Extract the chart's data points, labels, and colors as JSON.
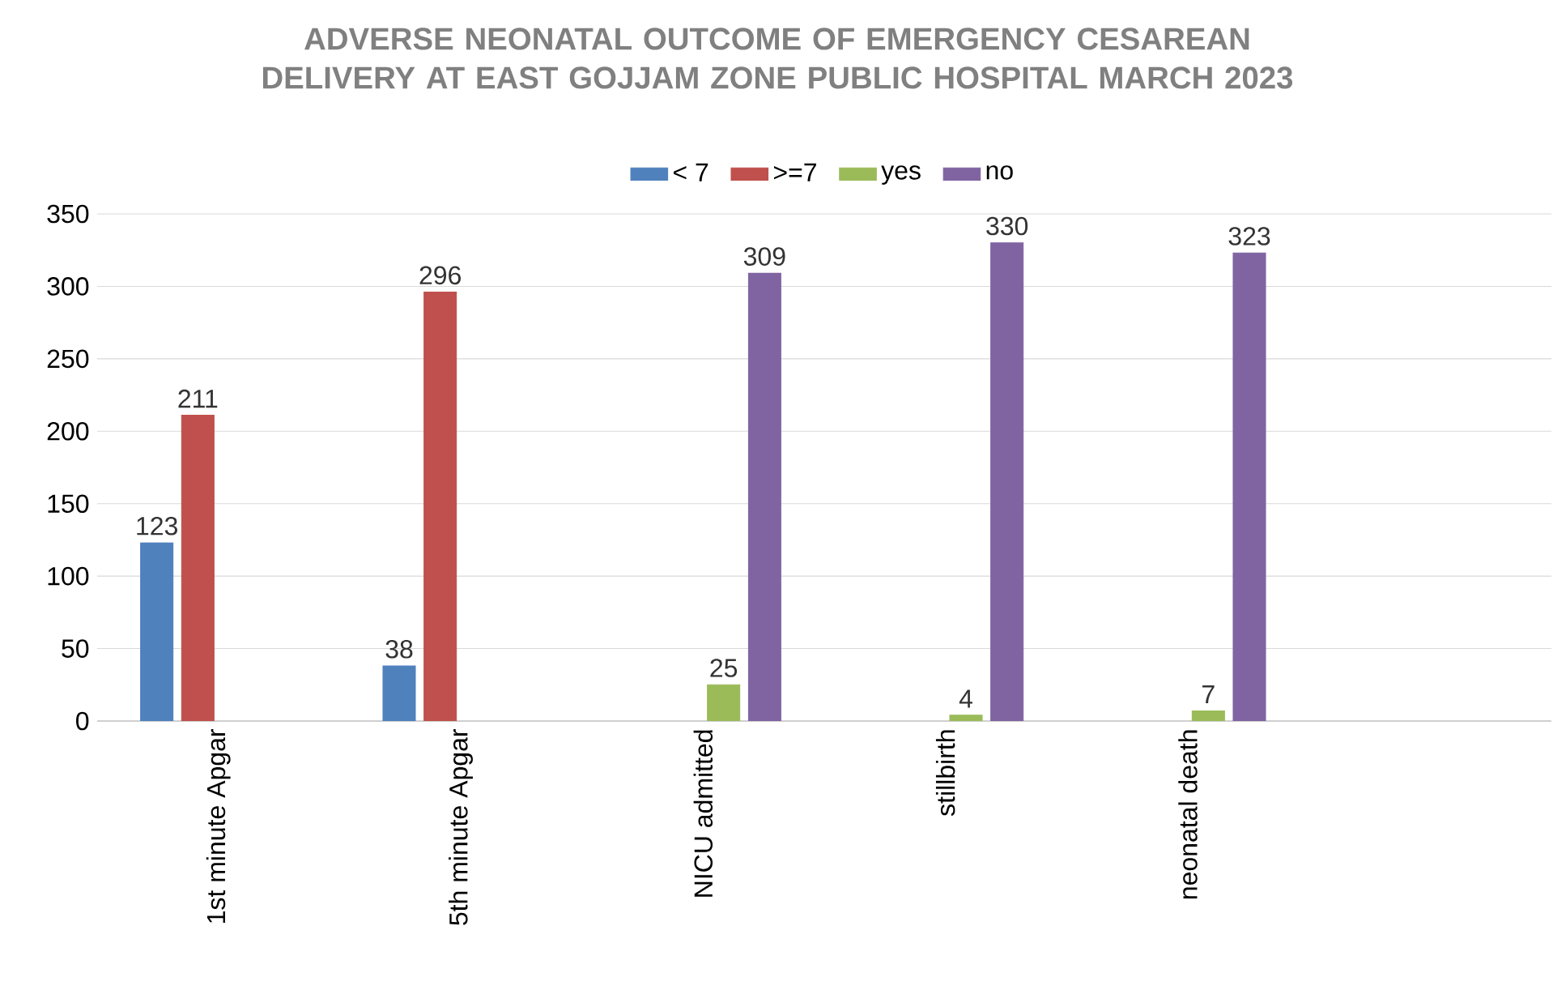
{
  "chart_data": {
    "type": "bar",
    "title": "ADVERSE NEONATAL OUTCOME OF EMERGENCY CESAREAN DELIVERY AT EAST GOJJAM ZONE PUBLIC HOSPITAL MARCH 2023",
    "categories": [
      "1st minute Apgar",
      "5th minute Apgar",
      "NICU admitted",
      "stillbirth",
      "neonatal death",
      null
    ],
    "series": [
      {
        "name": "< 7",
        "color": "#4f81bd",
        "values": [
          123,
          38,
          null,
          null,
          null,
          null
        ]
      },
      {
        "name": ">=7",
        "color": "#c0504d",
        "values": [
          211,
          296,
          null,
          null,
          null,
          null
        ]
      },
      {
        "name": "yes",
        "color": "#9bbb59",
        "values": [
          null,
          null,
          25,
          4,
          7,
          null
        ]
      },
      {
        "name": "no",
        "color": "#8064a2",
        "values": [
          null,
          null,
          309,
          330,
          323,
          null
        ]
      }
    ],
    "ylim": [
      0,
      350
    ],
    "yticks": [
      0,
      50,
      100,
      150,
      200,
      250,
      300,
      350
    ],
    "grid": "y",
    "legend": "top",
    "data_labels": true
  }
}
